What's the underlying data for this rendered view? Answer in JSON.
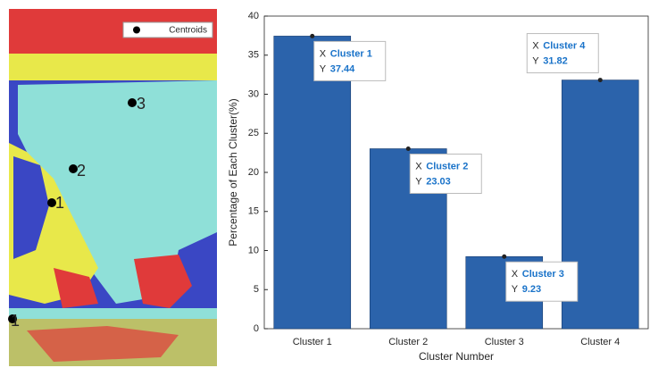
{
  "image_panel": {
    "legend": "Centroids",
    "centroid_labels": [
      "3",
      "2",
      "1",
      "1"
    ]
  },
  "chart_data": {
    "type": "bar",
    "categories": [
      "Cluster 1",
      "Cluster 2",
      "Cluster 3",
      "Cluster 4"
    ],
    "values": [
      37.44,
      23.03,
      9.23,
      31.82
    ],
    "color": "#2b63ab",
    "ylim": [
      0,
      40
    ],
    "yticks": [
      0,
      5,
      10,
      15,
      20,
      25,
      30,
      35,
      40
    ],
    "ylabel": "Percentage of Each Cluster(%)",
    "xlabel": "Cluster Number",
    "datatip_x_prefix": "X",
    "datatip_y_prefix": "Y"
  }
}
